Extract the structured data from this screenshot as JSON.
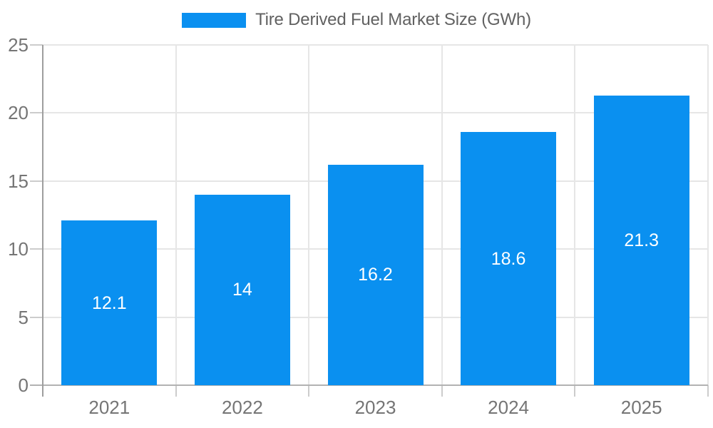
{
  "chart_data": {
    "type": "bar",
    "title": "",
    "legend": {
      "label": "Tire Derived Fuel Market Size (GWh)",
      "position": "top-center"
    },
    "categories": [
      "2021",
      "2022",
      "2023",
      "2024",
      "2025"
    ],
    "series": [
      {
        "name": "Tire Derived Fuel Market Size (GWh)",
        "values": [
          12.1,
          14,
          16.2,
          18.6,
          21.3
        ]
      }
    ],
    "bar_value_labels": [
      "12.1",
      "14",
      "16.2",
      "18.6",
      "21.3"
    ],
    "xlabel": "",
    "ylabel": "",
    "ylim": [
      0,
      25
    ],
    "yticks": [
      0,
      5,
      10,
      15,
      20,
      25
    ],
    "grid": "horizontal-and-vertical",
    "colors": {
      "bar": "#0a90f0",
      "grid_line": "#e6e6e6",
      "y_axis_line": "#9e9e9e",
      "x_axis_line": "#b2b2b2",
      "tick_mark": "#cccccc",
      "axis_label_text": "#757575",
      "legend_text": "#616161",
      "bar_label_text": "#ffffff",
      "background": "#ffffff"
    }
  }
}
